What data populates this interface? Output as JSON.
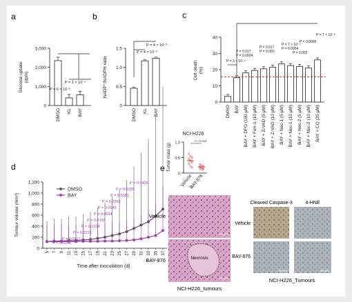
{
  "panel_labels": {
    "a": "a",
    "b": "b",
    "c": "c",
    "d": "d",
    "e": "e"
  },
  "colors": {
    "black": "#222222",
    "purple": "#a23bb8",
    "grey_line": "#555555",
    "red_threshold": "#d42020",
    "red_mean": "#d42020"
  },
  "chart_data": [
    {
      "panel": "a",
      "type": "bar",
      "ylabel": "Glucose uptake\n(dpm)",
      "ylabel_lines": [
        "Glucose uptake",
        "(dpm)"
      ],
      "yticks": [
        "0",
        "1,000",
        "2,000",
        "3,000"
      ],
      "ylim": [
        0,
        3000
      ],
      "categories": [
        "DMSO",
        "KL",
        "BAY"
      ],
      "values": [
        2350,
        400,
        560
      ],
      "pvalues": [
        "P = 1 × 10⁻⁵",
        "P = 6 × 10⁻⁵"
      ]
    },
    {
      "panel": "b",
      "type": "bar",
      "ylabel": "NADP⁺/NADPH ratio",
      "yticks": [
        "0",
        "0.5",
        "1.0",
        "1.5"
      ],
      "ylim": [
        0,
        1.5
      ],
      "categories": [
        "DMSO",
        "KL",
        "BAY"
      ],
      "values": [
        0.45,
        1.17,
        1.24
      ],
      "pvalues": [
        "P = 4 × 10⁻³",
        "P = 4 × 10⁻³"
      ]
    },
    {
      "panel": "c",
      "type": "bar",
      "ylabel": "Cell death\n(%)",
      "ylabel_lines": [
        "Cell death",
        "(%)"
      ],
      "yticks": [
        "0",
        "10",
        "20",
        "30",
        "40"
      ],
      "ylim": [
        0,
        40
      ],
      "categories": [
        "DMSO",
        "BAY",
        "BAY + DFO (100 μM)",
        "BAY + Ferr-1 (10 μM)",
        "BAY + Z-VAD (5 μM)",
        "BAY + Z-VAD (10 μM)",
        "BAY + Nec-1 (5 μM)",
        "BAY + Nec-1 (10 μM)",
        "BAY + Nec-2 (5 μM)",
        "BAY + Nec-2 (10 μM)",
        "BAY + CQ (25 μM)"
      ],
      "values": [
        3.5,
        15,
        18,
        19.5,
        20.5,
        21.5,
        23.5,
        22.5,
        22,
        21,
        26
      ],
      "threshold": 15.5,
      "pvalues": [
        "P = 3 × 10⁻⁶",
        "P = 0.017",
        "P = 0.0004",
        "P = 0.017",
        "P = 0.001",
        "P = 7 × 10⁻⁴",
        "P = 0.0004",
        "P = 0.002",
        "P = 0.0006",
        "P = 7 × 10⁻⁵"
      ]
    },
    {
      "panel": "d",
      "type": "line",
      "xlabel": "Time after inoculation (d)",
      "ylabel": "Tumour volume (mm³)",
      "x": [
        5,
        7,
        9,
        11,
        13,
        15,
        17,
        19,
        21,
        23,
        25,
        27,
        29,
        31,
        33,
        35,
        37
      ],
      "yticks": [
        "0",
        "200",
        "400",
        "600",
        "800",
        "1,000",
        "1,200"
      ],
      "ylim": [
        0,
        1200
      ],
      "series": [
        {
          "name": "DMSO",
          "values": [
            120,
            130,
            130,
            140,
            140,
            150,
            160,
            180,
            200,
            230,
            260,
            300,
            360,
            420,
            480,
            580,
            710
          ]
        },
        {
          "name": "BAY",
          "values": [
            120,
            120,
            120,
            120,
            120,
            125,
            125,
            125,
            130,
            130,
            135,
            140,
            150,
            170,
            200,
            230,
            320
          ]
        }
      ],
      "pvalues": [
        "P = 0.0405",
        "P = 0.0105",
        "P = 0.0081",
        "P = 0.0092",
        "P = 0.0045",
        "P = 0.0034",
        "P = 0.0155",
        "P = 0.0104",
        "P = 0.0213",
        "P = 0.0417",
        "P = 0.0029"
      ]
    },
    {
      "panel": "e",
      "type": "scatter",
      "title": "NCI-H226",
      "ylabel": "Tumor mass (g)",
      "yticks": [
        "0",
        "0.5",
        "1.0"
      ],
      "ylim": [
        0,
        1.0
      ],
      "categories": [
        "Vehicle",
        "BAY-876"
      ],
      "series": [
        {
          "name": "Vehicle",
          "values": [
            0.62,
            0.55,
            0.5,
            0.45,
            0.4,
            0.35,
            0.3,
            0.22,
            0.18
          ]
        },
        {
          "name": "BAY-876",
          "values": [
            0.28,
            0.25,
            0.22,
            0.2,
            0.18,
            0.17,
            0.15,
            0.13,
            0.12
          ]
        }
      ],
      "means": [
        0.4,
        0.2
      ],
      "pvalues": [
        "P = 0.004"
      ]
    }
  ],
  "histology": {
    "he_rows": [
      "Vehicle",
      "BAY-876"
    ],
    "necrosis_label": "Necrosis",
    "scale_bar": "50 μm",
    "he_caption": "NCI-H226_tumours",
    "ihc_columns": [
      "Cleaved Caspase-3",
      "4-HNE"
    ],
    "ihc_rows": [
      "Vehicle",
      "BAY-876"
    ],
    "ihc_scale_bar": "50 μm",
    "ihc_caption": "NCI-H226_Tumours"
  }
}
